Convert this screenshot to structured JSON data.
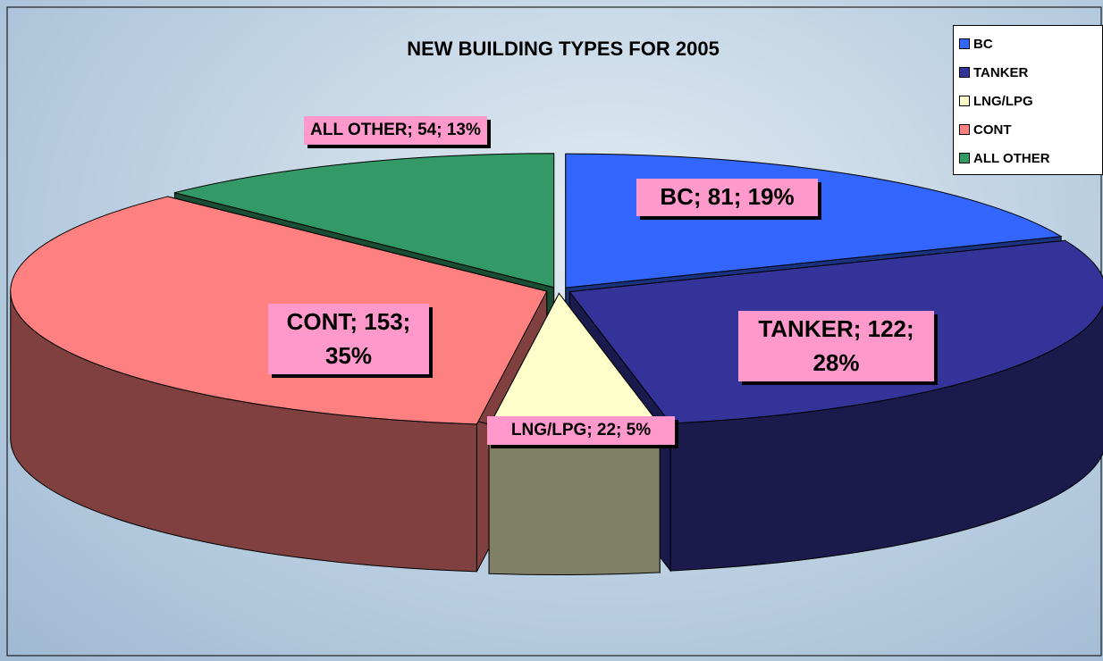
{
  "chart_data": {
    "type": "pie3d",
    "title": "NEW BUILDING TYPES FOR 2005",
    "categories": [
      "BC",
      "TANKER",
      "LNG/LPG",
      "CONT",
      "ALL OTHER"
    ],
    "values": [
      81,
      122,
      22,
      153,
      54
    ],
    "value_labels": [
      "BC; 81; 19%",
      "TANKER; 122; 28%",
      "LNG/LPG; 22; 5%",
      "CONT; 153; 35%",
      "ALL OTHER; 54; 13%"
    ],
    "colors": [
      "#3366ff",
      "#333399",
      "#ffffcc",
      "#ff8080",
      "#339966"
    ],
    "legend": "top-right"
  }
}
